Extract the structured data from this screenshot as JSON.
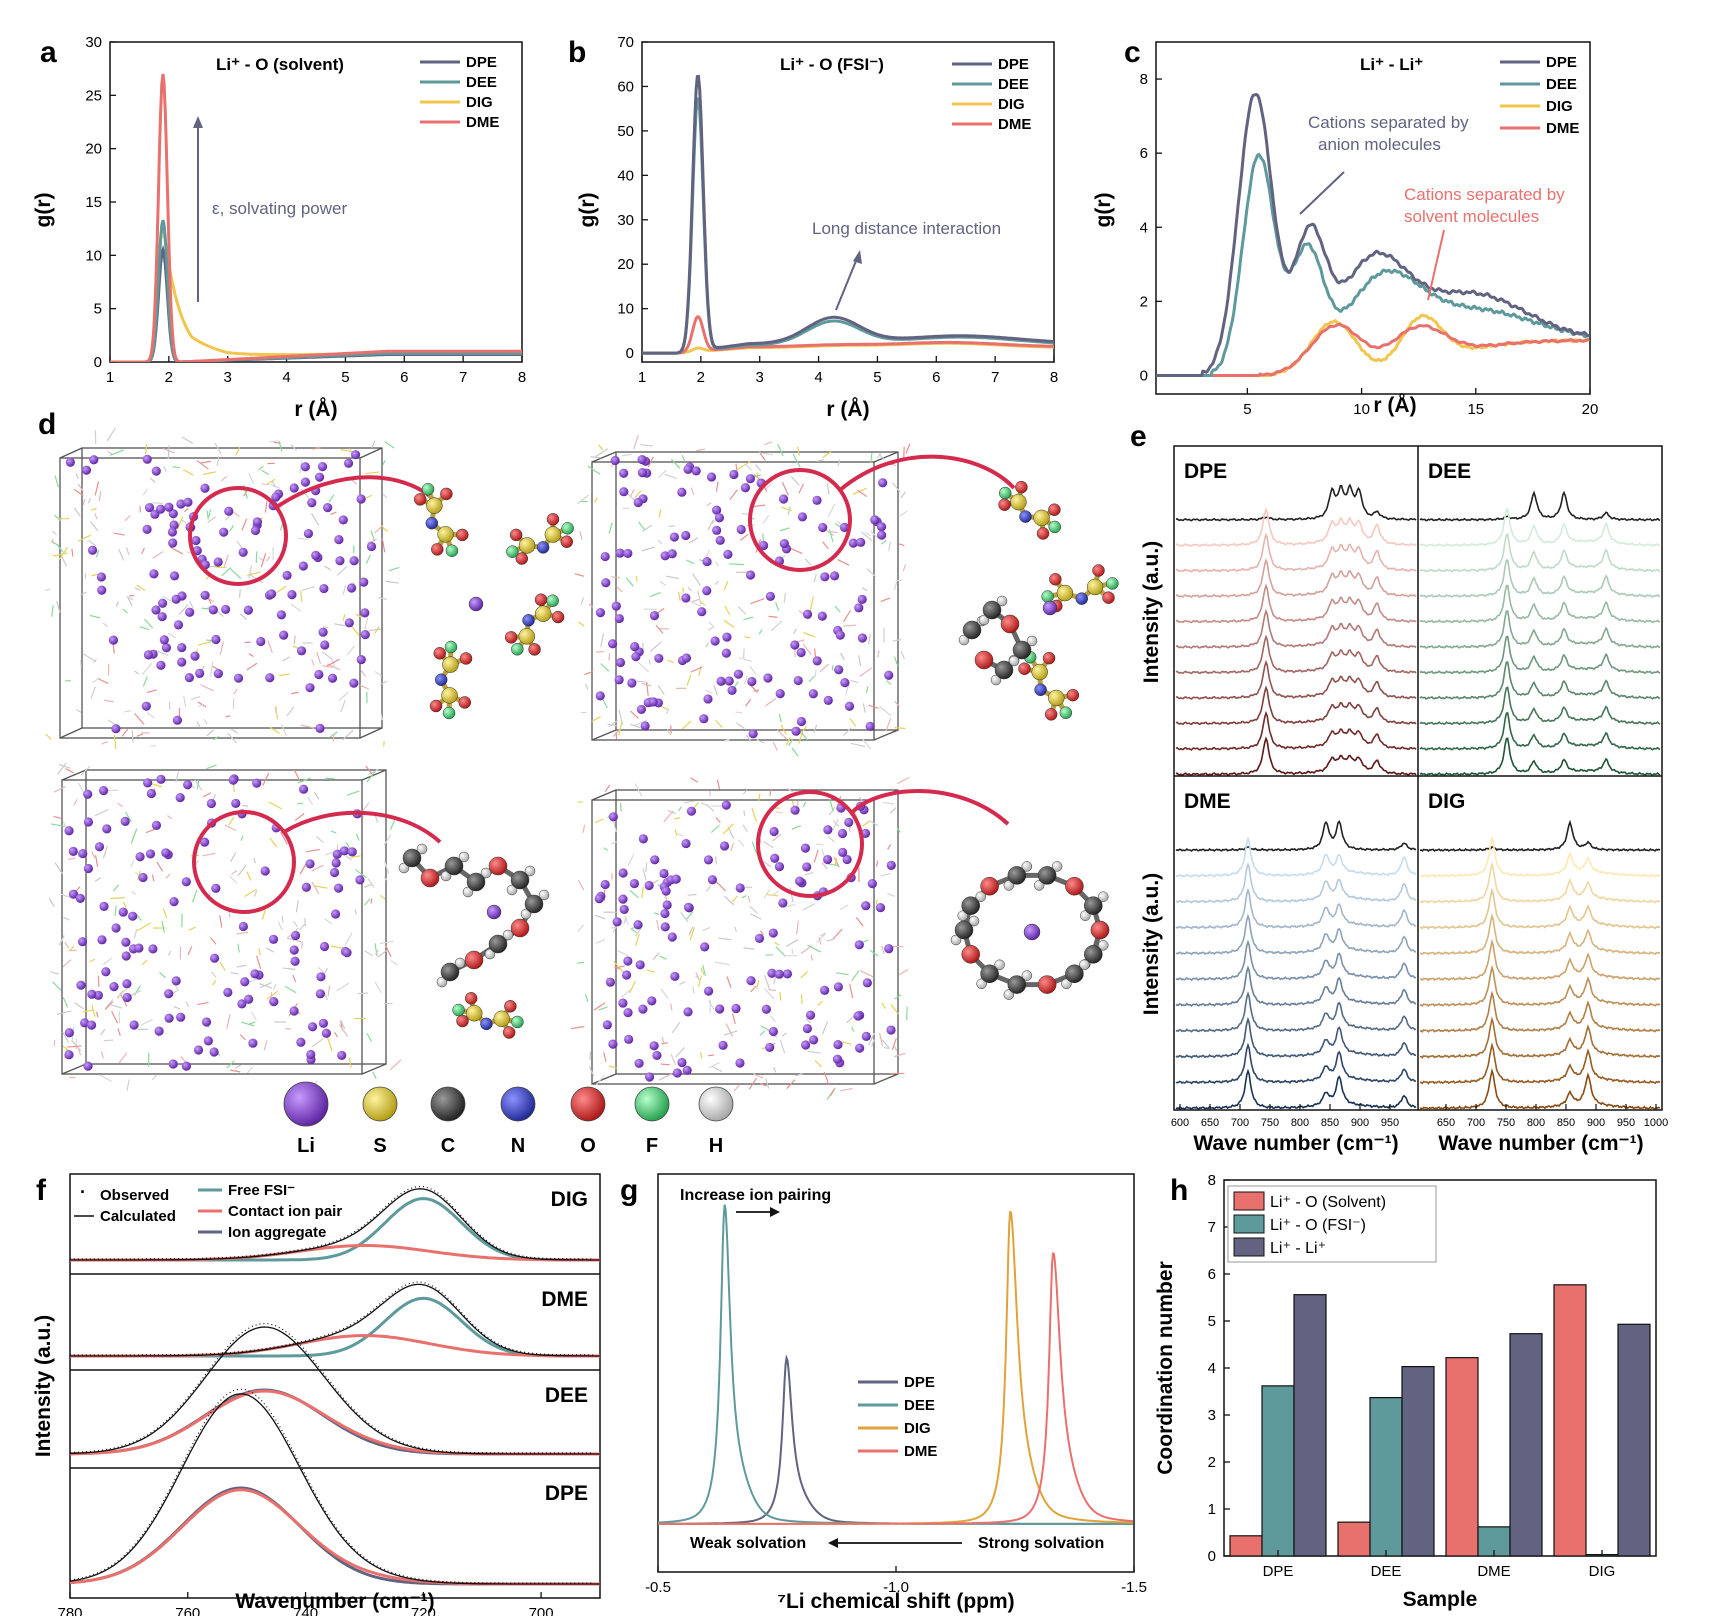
{
  "colors": {
    "DPE": "#626281",
    "DEE": "#5e9a9b",
    "DIG": "#f1c54e",
    "DME": "#e8716d",
    "DIG_nmr": "#e0a23a",
    "salmon": "#e8716d",
    "teal": "#5e9a9b",
    "navy": "#626281",
    "crimson": "#d42a4d"
  },
  "panel_letters": {
    "a": "a",
    "b": "b",
    "c": "c",
    "d": "d",
    "e": "e",
    "f": "f",
    "g": "g",
    "h": "h"
  },
  "chart_data": [
    {
      "id": "a",
      "type": "line",
      "title": "Li⁺ - O (solvent)",
      "xlabel": "r (Å)",
      "ylabel": "g(r)",
      "xlim": [
        1,
        8
      ],
      "ylim": [
        0,
        30
      ],
      "xticks": [
        "1",
        "2",
        "3",
        "4",
        "5",
        "6",
        "7",
        "8"
      ],
      "yticks": [
        "0",
        "5",
        "10",
        "15",
        "20",
        "25",
        "30"
      ],
      "annotation": "ε, solvating power",
      "series": [
        {
          "name": "DPE",
          "peak_r": 1.9,
          "peak": 10.5,
          "plateau": 0.7
        },
        {
          "name": "DEE",
          "peak_r": 1.9,
          "peak": 13.3,
          "plateau": 0.8
        },
        {
          "name": "DIG",
          "peak_r": 1.9,
          "peak": 13.0,
          "plateau": 0.9
        },
        {
          "name": "DME",
          "peak_r": 1.9,
          "peak": 27.0,
          "plateau": 1.0
        }
      ]
    },
    {
      "id": "b",
      "type": "line",
      "title": "Li⁺ - O (FSI⁻)",
      "xlabel": "r (Å)",
      "ylabel": "g(r)",
      "xlim": [
        1,
        8
      ],
      "ylim": [
        0,
        70
      ],
      "xticks": [
        "1",
        "2",
        "3",
        "4",
        "5",
        "6",
        "7",
        "8"
      ],
      "yticks": [
        "0",
        "10",
        "20",
        "30",
        "40",
        "50",
        "60",
        "70"
      ],
      "annotation": "Long distance interaction",
      "series": [
        {
          "name": "DPE",
          "peak_r": 1.95,
          "peak": 62,
          "second_peak": 7.7,
          "plateau": 3.5
        },
        {
          "name": "DEE",
          "peak_r": 1.95,
          "peak": 57,
          "second_peak": 7.0,
          "plateau": 3.0
        },
        {
          "name": "DIG",
          "peak_r": 1.95,
          "peak": 0.8,
          "second_peak": 0.9,
          "plateau": 1.2
        },
        {
          "name": "DME",
          "peak_r": 1.95,
          "peak": 7.8,
          "second_peak": 1.2,
          "plateau": 1.4
        }
      ]
    },
    {
      "id": "c",
      "type": "line",
      "title": "Li⁺ - Li⁺",
      "xlabel": "r (Å)",
      "ylabel": "g(r)",
      "xlim": [
        1,
        20
      ],
      "ylim": [
        -0.5,
        9
      ],
      "xticks": [
        "5",
        "10",
        "15",
        "20"
      ],
      "yticks": [
        "0",
        "2",
        "4",
        "6",
        "8"
      ],
      "annotations": [
        "Cations separated by anion molecules",
        "Cations separated by solvent molecules"
      ],
      "series": [
        {
          "name": "DPE",
          "peaks": [
            [
              5.4,
              7.8
            ],
            [
              7.7,
              4.0
            ],
            [
              10.4,
              3.0
            ],
            [
              14.5,
              2.0
            ]
          ],
          "end": 1.2
        },
        {
          "name": "DEE",
          "peaks": [
            [
              5.5,
              6.1
            ],
            [
              7.6,
              3.6
            ],
            [
              10.6,
              2.4
            ]
          ],
          "end": 1.2
        },
        {
          "name": "DIG",
          "peaks": [
            [
              8.8,
              1.5
            ],
            [
              12.6,
              1.3
            ]
          ],
          "end": 1.0
        },
        {
          "name": "DME",
          "peaks": [
            [
              8.9,
              1.4
            ],
            [
              12.4,
              1.1
            ]
          ],
          "end": 1.0
        }
      ]
    },
    {
      "id": "e",
      "type": "line",
      "xlabel": "Wave number (cm⁻¹)",
      "ylabel": "Intensity (a.u.)",
      "xticks": [
        "600",
        "650",
        "700",
        "750",
        "800",
        "850",
        "900",
        "950",
        "1000"
      ],
      "subpanels": [
        {
          "name": "DPE",
          "peaks": [
            750,
            860,
            875,
            890,
            905,
            935
          ],
          "palette": [
            "#f6c8c2",
            "#5e1616"
          ]
        },
        {
          "name": "DEE",
          "peaks": [
            745,
            790,
            840,
            910
          ],
          "palette": [
            "#d4ebdb",
            "#1f5637"
          ]
        },
        {
          "name": "DME",
          "peaks": [
            720,
            850,
            872,
            980
          ],
          "palette": [
            "#c8dcee",
            "#1b3355"
          ]
        },
        {
          "name": "DIG",
          "peaks": [
            720,
            850,
            880
          ],
          "palette": [
            "#fde8b5",
            "#8a4c12"
          ]
        }
      ]
    },
    {
      "id": "f",
      "type": "line",
      "xlabel": "Wavenumber (cm⁻¹)",
      "ylabel": "Intensity (a.u.)",
      "xlim": [
        780,
        690
      ],
      "xticks": [
        "780",
        "760",
        "740",
        "720",
        "700"
      ],
      "legend": [
        "Observed",
        "Calculated",
        "Free FSI⁻",
        "Contact ion pair",
        "Ion aggregate"
      ],
      "subpanels": [
        {
          "name": "DIG",
          "free_fsi_center": 720,
          "cip_center": 730
        },
        {
          "name": "DME",
          "free_fsi_center": 720,
          "cip_center": 730
        },
        {
          "name": "DEE",
          "aggregate_center": 747
        },
        {
          "name": "DPE",
          "aggregate_center": 751
        }
      ]
    },
    {
      "id": "g",
      "type": "line",
      "xlabel": "⁷Li chemical shift (ppm)",
      "xlim": [
        -0.5,
        -1.5
      ],
      "xticks": [
        "-0.5",
        "-1.0",
        "-1.5"
      ],
      "annotations": [
        "Increase ion pairing",
        "Weak solvation",
        "Strong solvation"
      ],
      "series": [
        {
          "name": "DPE",
          "shift": -0.77,
          "height": 0.52
        },
        {
          "name": "DEE",
          "shift": -0.64,
          "height": 1.0
        },
        {
          "name": "DIG",
          "shift": -1.24,
          "height": 0.98
        },
        {
          "name": "DME",
          "shift": -1.33,
          "height": 0.85
        }
      ]
    },
    {
      "id": "h",
      "type": "bar",
      "xlabel": "Sample",
      "ylabel": "Coordination number",
      "ylim": [
        0,
        8
      ],
      "categories": [
        "DPE",
        "DEE",
        "DME",
        "DIG"
      ],
      "yticks": [
        "0",
        "1",
        "2",
        "3",
        "4",
        "5",
        "6",
        "7",
        "8"
      ],
      "series": [
        {
          "name": "Li⁺ - O (Solvent)",
          "values": [
            0.43,
            0.72,
            4.22,
            5.77
          ]
        },
        {
          "name": "Li⁺ - O (FSI⁻)",
          "values": [
            3.62,
            3.37,
            0.62,
            0.03
          ]
        },
        {
          "name": "Li⁺ - Li⁺",
          "values": [
            5.56,
            4.03,
            4.73,
            4.93
          ]
        }
      ]
    }
  ],
  "atom_legend": [
    {
      "label": "Li",
      "color": "#7a3fbf"
    },
    {
      "label": "S",
      "color": "#e6d23a"
    },
    {
      "label": "C",
      "color": "#3a3a3a"
    },
    {
      "label": "N",
      "color": "#3340b8"
    },
    {
      "label": "O",
      "color": "#e02a2a"
    },
    {
      "label": "F",
      "color": "#4fd17d"
    },
    {
      "label": "H",
      "color": "#e8e8e8"
    }
  ]
}
